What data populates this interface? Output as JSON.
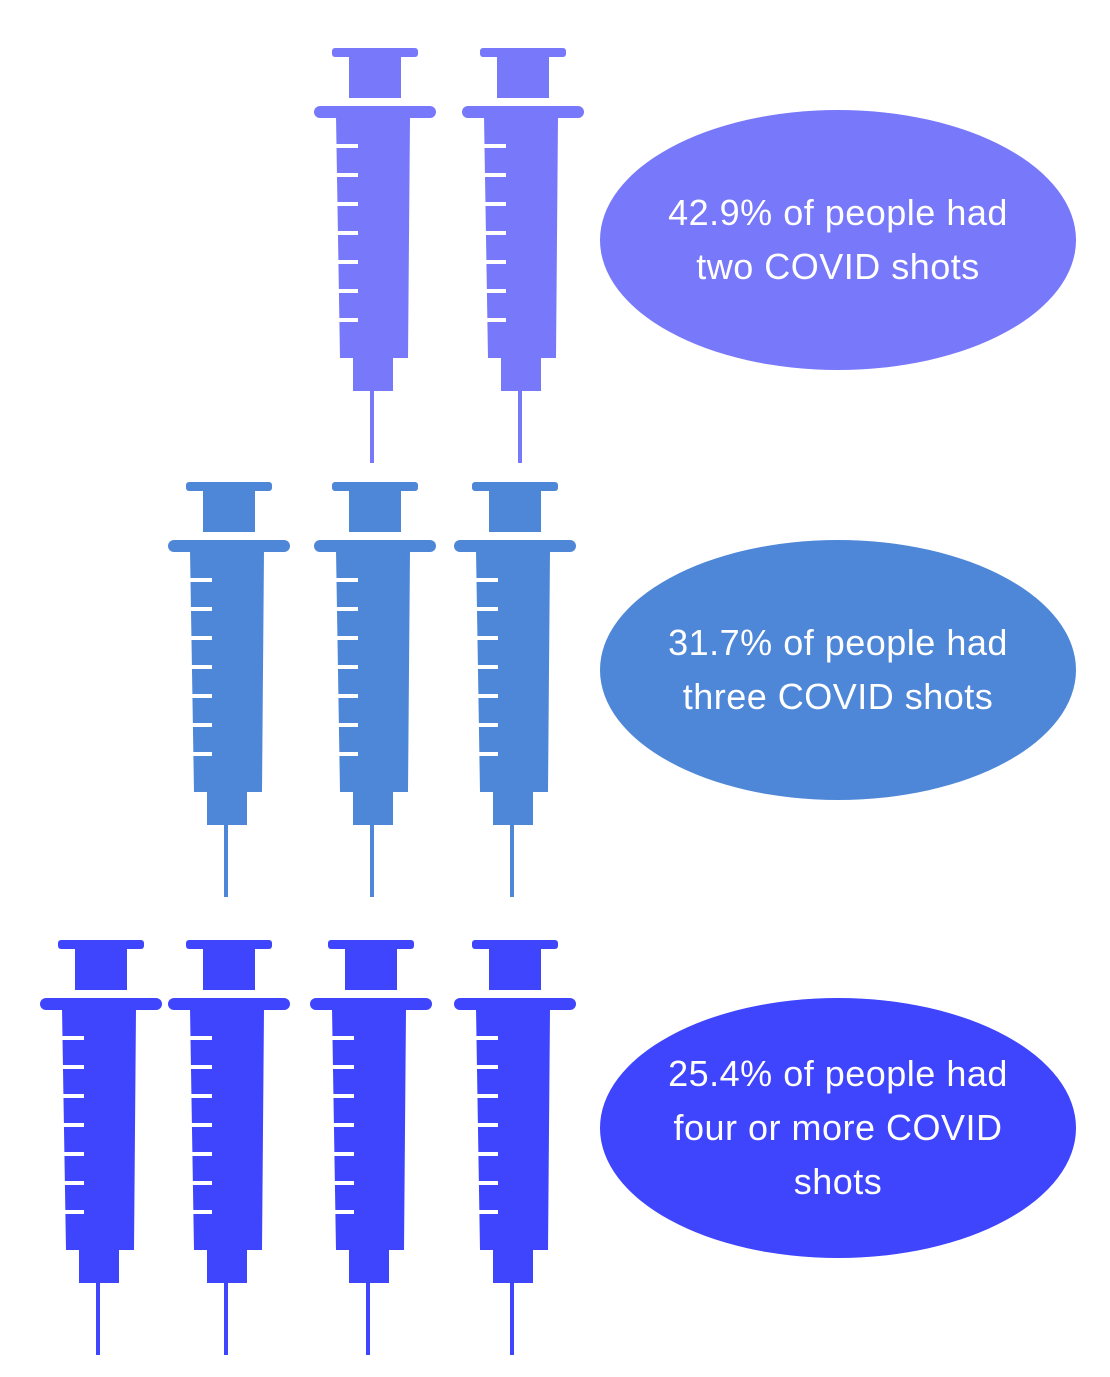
{
  "colors": {
    "two_shots": "#7878fb",
    "three_shots": "#4f87d8",
    "four_plus_shots": "#3f44fd"
  },
  "groups": [
    {
      "label": "42.9% of people had two COVID shots",
      "value_percent": 42.9,
      "syringe_count": 2,
      "color": "#7878fb"
    },
    {
      "label": "31.7% of people had three COVID shots",
      "value_percent": 31.7,
      "syringe_count": 3,
      "color": "#4f87d8"
    },
    {
      "label": "25.4% of people had four or more COVID shots",
      "value_percent": 25.4,
      "syringe_count": 4,
      "color": "#3f44fd"
    }
  ],
  "icons": {
    "syringe": "syringe-icon"
  }
}
